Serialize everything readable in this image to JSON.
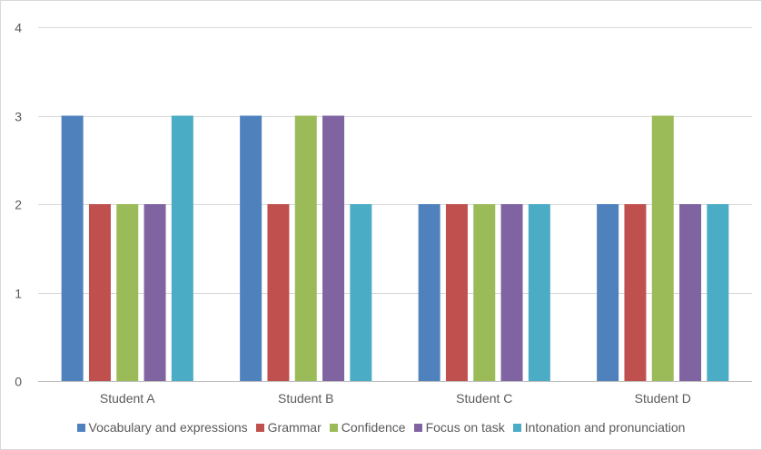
{
  "chart_data": {
    "type": "bar",
    "title": "",
    "xlabel": "",
    "ylabel": "",
    "categories": [
      "Student A",
      "Student B",
      "Student C",
      "Student D"
    ],
    "series": [
      {
        "name": "Vocabulary and expressions",
        "color": "#4f81bd",
        "values": [
          3,
          3,
          2,
          2
        ]
      },
      {
        "name": "Grammar",
        "color": "#c0504d",
        "values": [
          2,
          2,
          2,
          2
        ]
      },
      {
        "name": "Confidence",
        "color": "#9bbb59",
        "values": [
          2,
          3,
          2,
          3
        ]
      },
      {
        "name": "Focus on task",
        "color": "#8064a2",
        "values": [
          2,
          3,
          2,
          2
        ]
      },
      {
        "name": "Intonation and pronunciation",
        "color": "#4bacc6",
        "values": [
          3,
          2,
          2,
          2
        ]
      }
    ],
    "ylim": [
      0,
      4
    ],
    "yticks": [
      0,
      1,
      2,
      3,
      4
    ],
    "grid": true,
    "legend_position": "bottom"
  }
}
